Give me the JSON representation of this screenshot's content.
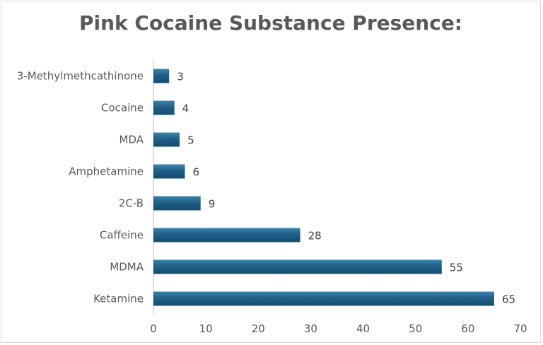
{
  "chart_data": {
    "type": "bar",
    "orientation": "horizontal",
    "title": "Pink Cocaine Substance Presence:",
    "categories": [
      "3-Methylmethcathinone",
      "Cocaine",
      "MDA",
      "Amphetamine",
      "2C-B",
      "Caffeine",
      "MDMA",
      "Ketamine"
    ],
    "values": [
      3,
      4,
      5,
      6,
      9,
      28,
      55,
      65
    ],
    "xlim": [
      0,
      70
    ],
    "xticks": [
      0,
      10,
      20,
      30,
      40,
      50,
      60,
      70
    ],
    "xlabel": "",
    "ylabel": "",
    "grid": false,
    "legend": "none",
    "bar_color": "#1f5f86",
    "bar_color_light": "#2e7aa6",
    "show_data_labels": true
  }
}
